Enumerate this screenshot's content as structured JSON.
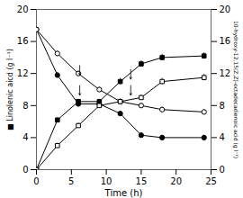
{
  "chart_data": {
    "type": "line",
    "xlabel": "Time (h)",
    "ylabel": "■ Linolenic aicd (g l⁻¹)",
    "y2label": "10-hydroxy-12,15(Z,Z)-octadecadienoic acid (g l⁻¹)",
    "x": [
      0,
      3,
      6,
      9,
      12,
      15,
      18,
      24
    ],
    "xlim": [
      0,
      25
    ],
    "xticks": [
      0,
      5,
      10,
      15,
      20,
      25
    ],
    "ylim": [
      0,
      20
    ],
    "yticks": [
      0,
      4,
      8,
      12,
      16,
      20
    ],
    "y2lim": [
      0,
      20
    ],
    "y2ticks": [
      0,
      4,
      8,
      12,
      16,
      20
    ],
    "series": [
      {
        "values": [
          17.5,
          11.8,
          8.2,
          8.2,
          7.0,
          4.3,
          4.0,
          4.0
        ],
        "errors": [
          0,
          0.3,
          0.3,
          0.3,
          0.3,
          0.3,
          0.3,
          0.3
        ],
        "color": "#000000",
        "marker": "circle",
        "line_style": "solid",
        "axis": "y"
      },
      {
        "values": [
          17.5,
          14.5,
          12.0,
          10.0,
          8.5,
          8.0,
          7.5,
          7.2
        ],
        "errors": [
          0,
          0.3,
          0.3,
          0.3,
          0.3,
          0.3,
          0.3,
          0.3
        ],
        "color": "#000000",
        "marker": "circle-open",
        "line_style": "solid",
        "axis": "y"
      },
      {
        "values": [
          0.0,
          6.2,
          8.5,
          8.5,
          11.0,
          13.2,
          14.0,
          14.2
        ],
        "errors": [
          0,
          0.3,
          0.3,
          0.3,
          0.4,
          0.4,
          0.4,
          0.4
        ],
        "color": "#000000",
        "marker": "square",
        "line_style": "solid",
        "axis": "y2"
      },
      {
        "values": [
          0.0,
          3.0,
          5.5,
          8.0,
          8.5,
          9.0,
          11.0,
          11.5
        ],
        "errors": [
          0,
          0.3,
          0.3,
          0.3,
          0.3,
          0.3,
          0.4,
          0.4
        ],
        "color": "#000000",
        "marker": "square-open",
        "line_style": "solid",
        "axis": "y2"
      }
    ],
    "arrows": [
      {
        "x1": 6.2,
        "y1": 13.0,
        "x2": 6.2,
        "y2": 11.8
      },
      {
        "x1": 6.2,
        "y1": 10.5,
        "x2": 6.2,
        "y2": 9.3
      },
      {
        "x1": 13.5,
        "y1": 12.5,
        "x2": 13.5,
        "y2": 11.3
      },
      {
        "x1": 13.5,
        "y1": 10.5,
        "x2": 13.5,
        "y2": 9.3
      }
    ]
  }
}
